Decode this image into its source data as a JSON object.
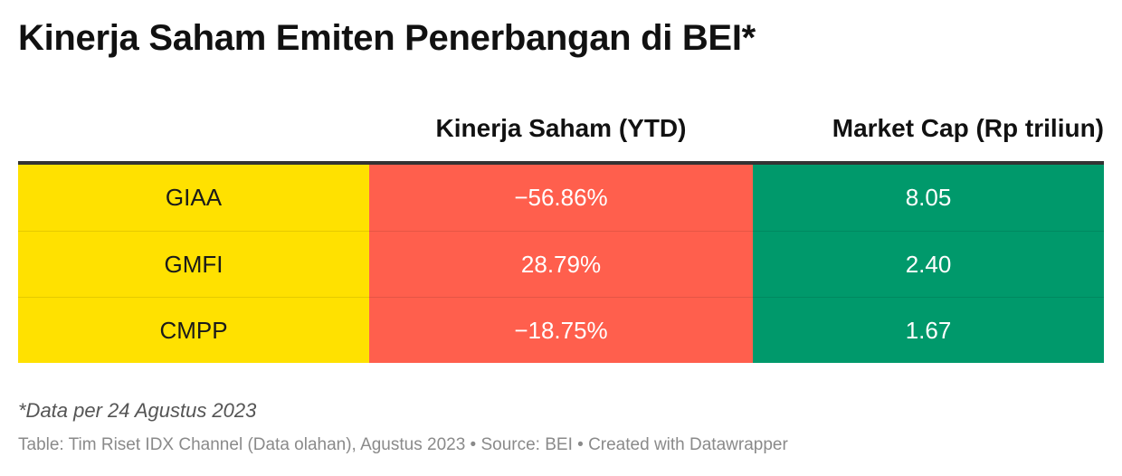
{
  "title": "Kinerja Saham Emiten Penerbangan di BEI*",
  "colors": {
    "ticker_fill": "#ffe100",
    "performance_fill": "#ff5f4d",
    "market_cap_fill": "#00996b",
    "header_rule": "#333333"
  },
  "chart_data": {
    "type": "table",
    "columns": [
      "",
      "Kinerja Saham (YTD)",
      "Market Cap (Rp triliun)"
    ],
    "rows": [
      {
        "ticker": "GIAA",
        "performance": "−56.86%",
        "market_cap": "8.05"
      },
      {
        "ticker": "GMFI",
        "performance": "28.79%",
        "market_cap": "2.40"
      },
      {
        "ticker": "CMPP",
        "performance": "−18.75%",
        "market_cap": "1.67"
      }
    ]
  },
  "note": "*Data per 24 Agustus 2023",
  "footer": "Table: Tim Riset IDX Channel (Data olahan), Agustus 2023 • Source: BEI • Created with Datawrapper"
}
